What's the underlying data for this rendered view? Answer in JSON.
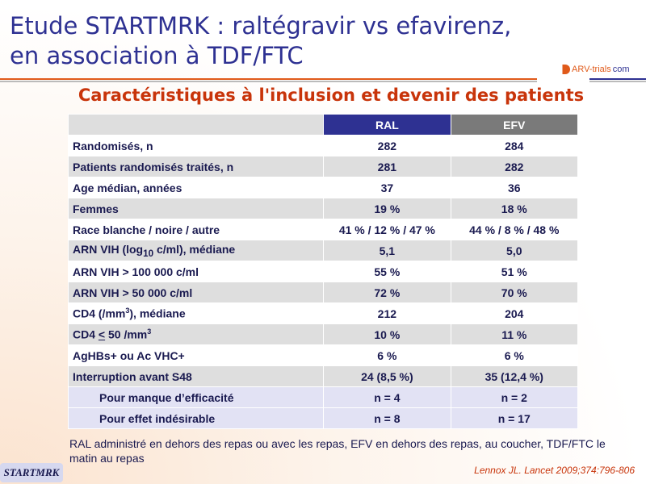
{
  "title_line1": "Etude STARTMRK : raltégravir vs efavirenz,",
  "title_line2": "en association à TDF/FTC",
  "logo": {
    "brand": "ARV-trials",
    "suffix": "com"
  },
  "subtitle": "Caractéristiques à l'inclusion et devenir des patients",
  "table": {
    "headers": [
      "",
      "RAL",
      "EFV"
    ],
    "rows": [
      {
        "label": "Randomisés, n",
        "ral": "282",
        "efv": "284"
      },
      {
        "label": "Patients randomisés traités, n",
        "ral": "281",
        "efv": "282"
      },
      {
        "label": "Age médian, années",
        "ral": "37",
        "efv": "36"
      },
      {
        "label": "Femmes",
        "ral": "19 %",
        "efv": "18 %"
      },
      {
        "label": "Race blanche / noire / autre",
        "ral": "41 % / 12 % / 47 %",
        "efv": "44 % / 8 % / 48 %"
      },
      {
        "label_pre": "ARN VIH (log",
        "label_sub": "10",
        "label_post": " c/ml), médiane",
        "ral": "5,1",
        "efv": "5,0"
      },
      {
        "label": "ARN VIH > 100 000 c/ml",
        "ral": "55 %",
        "efv": "51 %"
      },
      {
        "label": "ARN VIH > 50 000 c/ml",
        "ral": "72 %",
        "efv": "70 %"
      },
      {
        "label_pre": "CD4 (/mm",
        "label_sup": "3",
        "label_post": "), médiane",
        "ral": "212",
        "efv": "204"
      },
      {
        "label_pre": "CD4 ",
        "label_u": "<",
        "label_mid": " 50 /mm",
        "label_sup": "3",
        "ral": "10 %",
        "efv": "11 %"
      },
      {
        "label": "AgHBs+ ou Ac VHC+",
        "ral": "6 %",
        "efv": "6 %"
      },
      {
        "label": "Interruption avant S48",
        "ral": "24 (8,5 %)",
        "efv": "35 (12,4 %)"
      },
      {
        "label": "Pour manque d’efficacité",
        "ral": "n = 4",
        "efv": "n = 2"
      },
      {
        "label": "Pour effet indésirable",
        "ral": "n = 8",
        "efv": "n = 17"
      }
    ]
  },
  "note": "RAL administré en dehors des repas ou avec les repas, EFV en dehors des repas, au coucher, TDF/FTC le matin au repas",
  "reference": "Lennox JL. Lancet 2009;374:796-806",
  "badge": "STARTMRK"
}
